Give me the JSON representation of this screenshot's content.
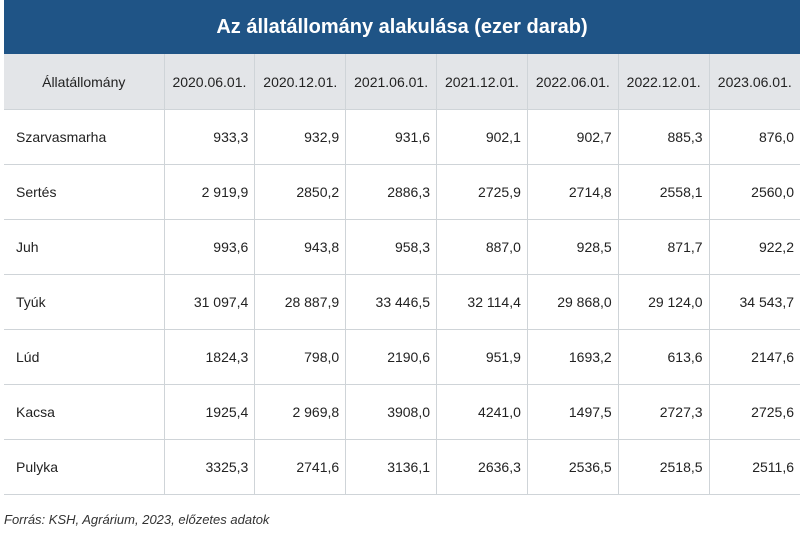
{
  "title": "Az állatállomány alakulása (ezer darab)",
  "columns": [
    "Állatállomány",
    "2020.06.01.",
    "2020.12.01.",
    "2021.06.01.",
    "2021.12.01.",
    "2022.06.01.",
    "2022.12.01.",
    "2023.06.01."
  ],
  "rows": [
    {
      "label": "Szarvasmarha",
      "values": [
        "933,3",
        "932,9",
        "931,6",
        "902,1",
        "902,7",
        "885,3",
        "876,0"
      ]
    },
    {
      "label": "Sertés",
      "values": [
        "2 919,9",
        "2850,2",
        "2886,3",
        "2725,9",
        "2714,8",
        "2558,1",
        "2560,0"
      ]
    },
    {
      "label": "Juh",
      "values": [
        "993,6",
        "943,8",
        "958,3",
        "887,0",
        "928,5",
        "871,7",
        "922,2"
      ]
    },
    {
      "label": "Tyúk",
      "values": [
        "31 097,4",
        "28 887,9",
        "33 446,5",
        "32 114,4",
        "29 868,0",
        "29 124,0",
        "34 543,7"
      ]
    },
    {
      "label": "Lúd",
      "values": [
        "1824,3",
        "798,0",
        "2190,6",
        "951,9",
        "1693,2",
        "613,6",
        "2147,6"
      ]
    },
    {
      "label": "Kacsa",
      "values": [
        "1925,4",
        "2 969,8",
        "3908,0",
        "4241,0",
        "1497,5",
        "2727,3",
        "2725,6"
      ]
    },
    {
      "label": "Pulyka",
      "values": [
        "3325,3",
        "2741,6",
        "3136,1",
        "2636,3",
        "2536,5",
        "2518,5",
        "2511,6"
      ]
    }
  ],
  "source": "Forrás: KSH, Agrárium, 2023, előzetes adatok",
  "colors": {
    "header_bg": "#1f5486",
    "column_header_bg": "#e3e5e8",
    "grid": "#cfd4d8"
  }
}
